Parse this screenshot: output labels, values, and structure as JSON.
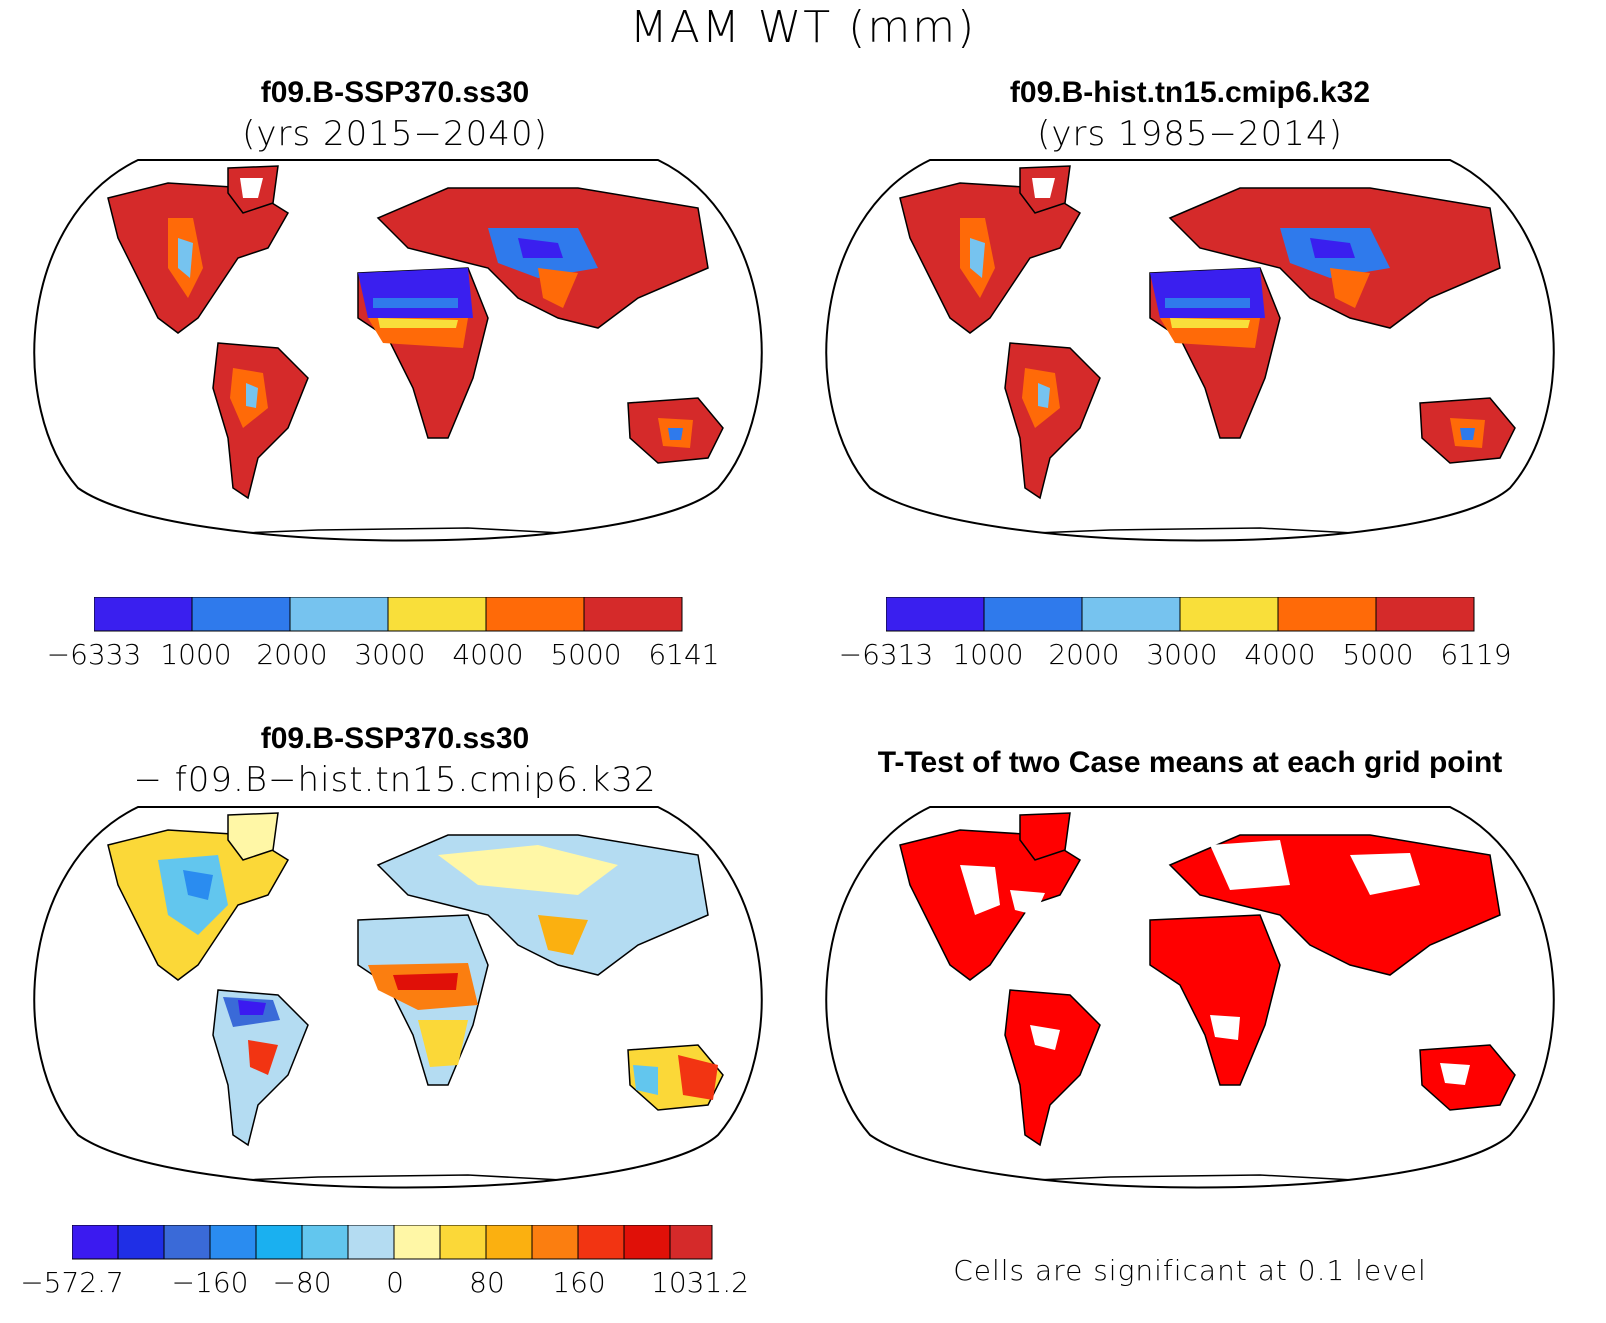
{
  "figure_title": "MAM WT (mm)",
  "panels": {
    "top_left": {
      "title": "f09.B-SSP370.ss30",
      "subtitle": "(yrs 2015−2040)",
      "colorbar_labels": [
        "−6333",
        "1000",
        "2000",
        "3000",
        "4000",
        "5000",
        "6141"
      ],
      "colorbar_colors": [
        "#3a1fef",
        "#2f7aec",
        "#76c3ef",
        "#f9df3a",
        "#ff6a08",
        "#d52a2a"
      ]
    },
    "top_right": {
      "title": "f09.B-hist.tn15.cmip6.k32",
      "subtitle": "(yrs 1985−2014)",
      "colorbar_labels": [
        "−6313",
        "1000",
        "2000",
        "3000",
        "4000",
        "5000",
        "6119"
      ],
      "colorbar_colors": [
        "#3a1fef",
        "#2f7aec",
        "#76c3ef",
        "#f9df3a",
        "#ff6a08",
        "#d52a2a"
      ]
    },
    "bottom_left": {
      "title": "f09.B-SSP370.ss30",
      "subtitle": "− f09.B−hist.tn15.cmip6.k32",
      "colorbar_labels": [
        "−572.7",
        "−160",
        "−80",
        "0",
        "80",
        "160",
        "1031.2"
      ],
      "colorbar_colors": [
        "#3b1af0",
        "#1f2fe6",
        "#3a6ad8",
        "#2a8cf0",
        "#1ab0f0",
        "#62c6ee",
        "#b4dcf2",
        "#fff7a6",
        "#fbd838",
        "#fbb010",
        "#fb7e10",
        "#f23412",
        "#e01008",
        "#d52a2a"
      ]
    },
    "bottom_right": {
      "title": "T-Test of two Case means at each grid point",
      "footnote": "Cells are significant at 0.1 level",
      "fill_color": "#ff0000"
    }
  }
}
